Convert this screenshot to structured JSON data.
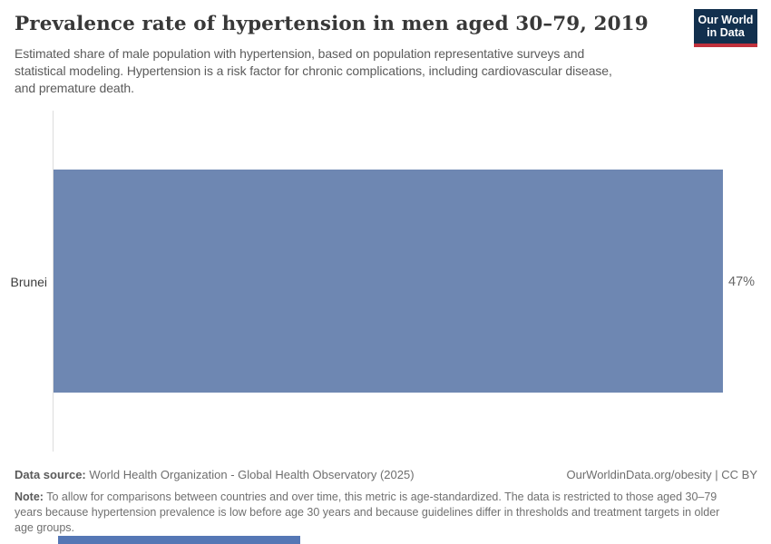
{
  "header": {
    "title": "Prevalence rate of hypertension in men aged 30–79, 2019",
    "subtitle_lines": [
      "Estimated share of male population with hypertension, based on population representative surveys and",
      "statistical modeling. Hypertension is a risk factor for chronic complications, including cardiovascular disease,",
      "and premature death."
    ]
  },
  "logo": {
    "line1": "Our World",
    "line2": "in Data"
  },
  "chart_data": {
    "type": "bar",
    "orientation": "horizontal",
    "title": "Prevalence rate of hypertension in men aged 30–79, 2019",
    "categories": [
      "Brunei"
    ],
    "values": [
      47
    ],
    "value_labels": [
      "47%"
    ],
    "unit": "%",
    "xlim": [
      0,
      47
    ],
    "grid": false,
    "legend": "none",
    "bar_color": "#6e87b2"
  },
  "footer": {
    "datasource_label": "Data source:",
    "datasource_text": "World Health Organization - Global Health Observatory (2025)",
    "attribution": "OurWorldinData.org/obesity | CC BY",
    "note_label": "Note:",
    "note_lines": [
      "To allow for comparisons between countries and over time, this metric is age-standardized. The data is restricted to those aged 30–79",
      "years because hypertension prevalence is low before age 30 years and because guidelines differ in thresholds and treatment targets in older",
      "age groups."
    ]
  },
  "colors": {
    "bar": "#6e87b2",
    "axis_line": "#dddddd",
    "logo_bg": "#12304e",
    "logo_accent": "#c0313c",
    "timeline_bar": "#5577b5"
  }
}
